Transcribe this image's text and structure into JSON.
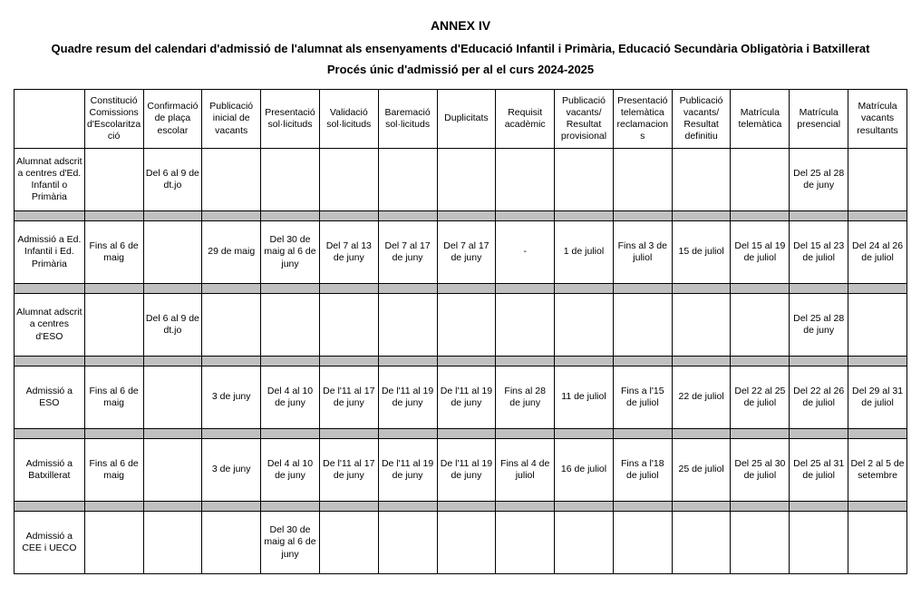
{
  "titles": {
    "annex": "ANNEX IV",
    "main": "Quadre resum del calendari d'admissió de l'alumnat als ensenyaments d'Educació Infantil i Primària, Educació Secundària Obligatòria i Batxillerat",
    "sub": "Procés únic d'admissió per al el curs 2024-2025"
  },
  "table": {
    "columns": [
      "",
      "Constitució Comissions d'Escolarització",
      "Confirmació de plaça escolar",
      "Publicació inicial de vacants",
      "Presentació sol·licituds",
      "Validació sol·licituds",
      "Baremació sol·licituds",
      "Duplicitats",
      "Requisit acadèmic",
      "Publicació vacants/ Resultat provisional",
      "Presentació telemàtica reclamacions",
      "Publicació vacants/ Resultat definitiu",
      "Matrícula telemàtica",
      "Matrícula presencial",
      "Matrícula vacants resultants"
    ],
    "rows": [
      [
        "Alumnat adscrit a centres d'Ed. Infantil o Primària",
        "",
        "Del 6 al 9 de dt.jo",
        "",
        "",
        "",
        "",
        "",
        "",
        "",
        "",
        "",
        "",
        "Del 25 al 28 de juny",
        ""
      ],
      "sep",
      [
        "Admissió a Ed. Infantil i Ed. Primària",
        "Fins al 6 de maig",
        "",
        "29 de maig",
        "Del 30 de maig al 6 de juny",
        "Del 7 al 13 de juny",
        "Del 7 al 17 de juny",
        "Del 7 al 17 de juny",
        "-",
        "1 de juliol",
        "Fins al 3 de juliol",
        "15 de juliol",
        "Del 15 al 19 de juliol",
        "Del 15 al 23 de juliol",
        "Del 24 al 26 de juliol"
      ],
      "sep",
      [
        "Alumnat adscrit a centres d'ESO",
        "",
        "Del 6 al 9 de dt.jo",
        "",
        "",
        "",
        "",
        "",
        "",
        "",
        "",
        "",
        "",
        "Del 25 al 28 de juny",
        ""
      ],
      "sep",
      [
        "Admissió a ESO",
        "Fins al 6 de maig",
        "",
        "3 de juny",
        "Del 4 al 10 de juny",
        "De l'11 al 17 de juny",
        "De l'11 al 19 de juny",
        "De l'11 al 19 de juny",
        "Fins al 28 de juny",
        "11 de juliol",
        "Fins a l'15 de juliol",
        "22 de juliol",
        "Del 22 al 25 de juliol",
        "Del 22 al 26 de juliol",
        "Del 29 al 31 de juliol"
      ],
      "sep",
      [
        "Admissió a Batxillerat",
        "Fins al 6 de maig",
        "",
        "3 de juny",
        "Del 4 al 10 de juny",
        "De l'11 al 17 de juny",
        "De l'11 al 19 de juny",
        "De l'11 al 19 de juny",
        "Fins al 4 de juliol",
        "16 de juliol",
        "Fins a l'18 de juliol",
        "25 de juliol",
        "Del 25 al 30 de juliol",
        "Del 25 al 31 de juliol",
        "Del 2 al 5 de setembre"
      ],
      "sep",
      [
        "Admissió a CEE i UECO",
        "",
        "",
        "",
        "Del 30 de maig al 6 de juny",
        "",
        "",
        "",
        "",
        "",
        "",
        "",
        "",
        "",
        ""
      ]
    ]
  }
}
